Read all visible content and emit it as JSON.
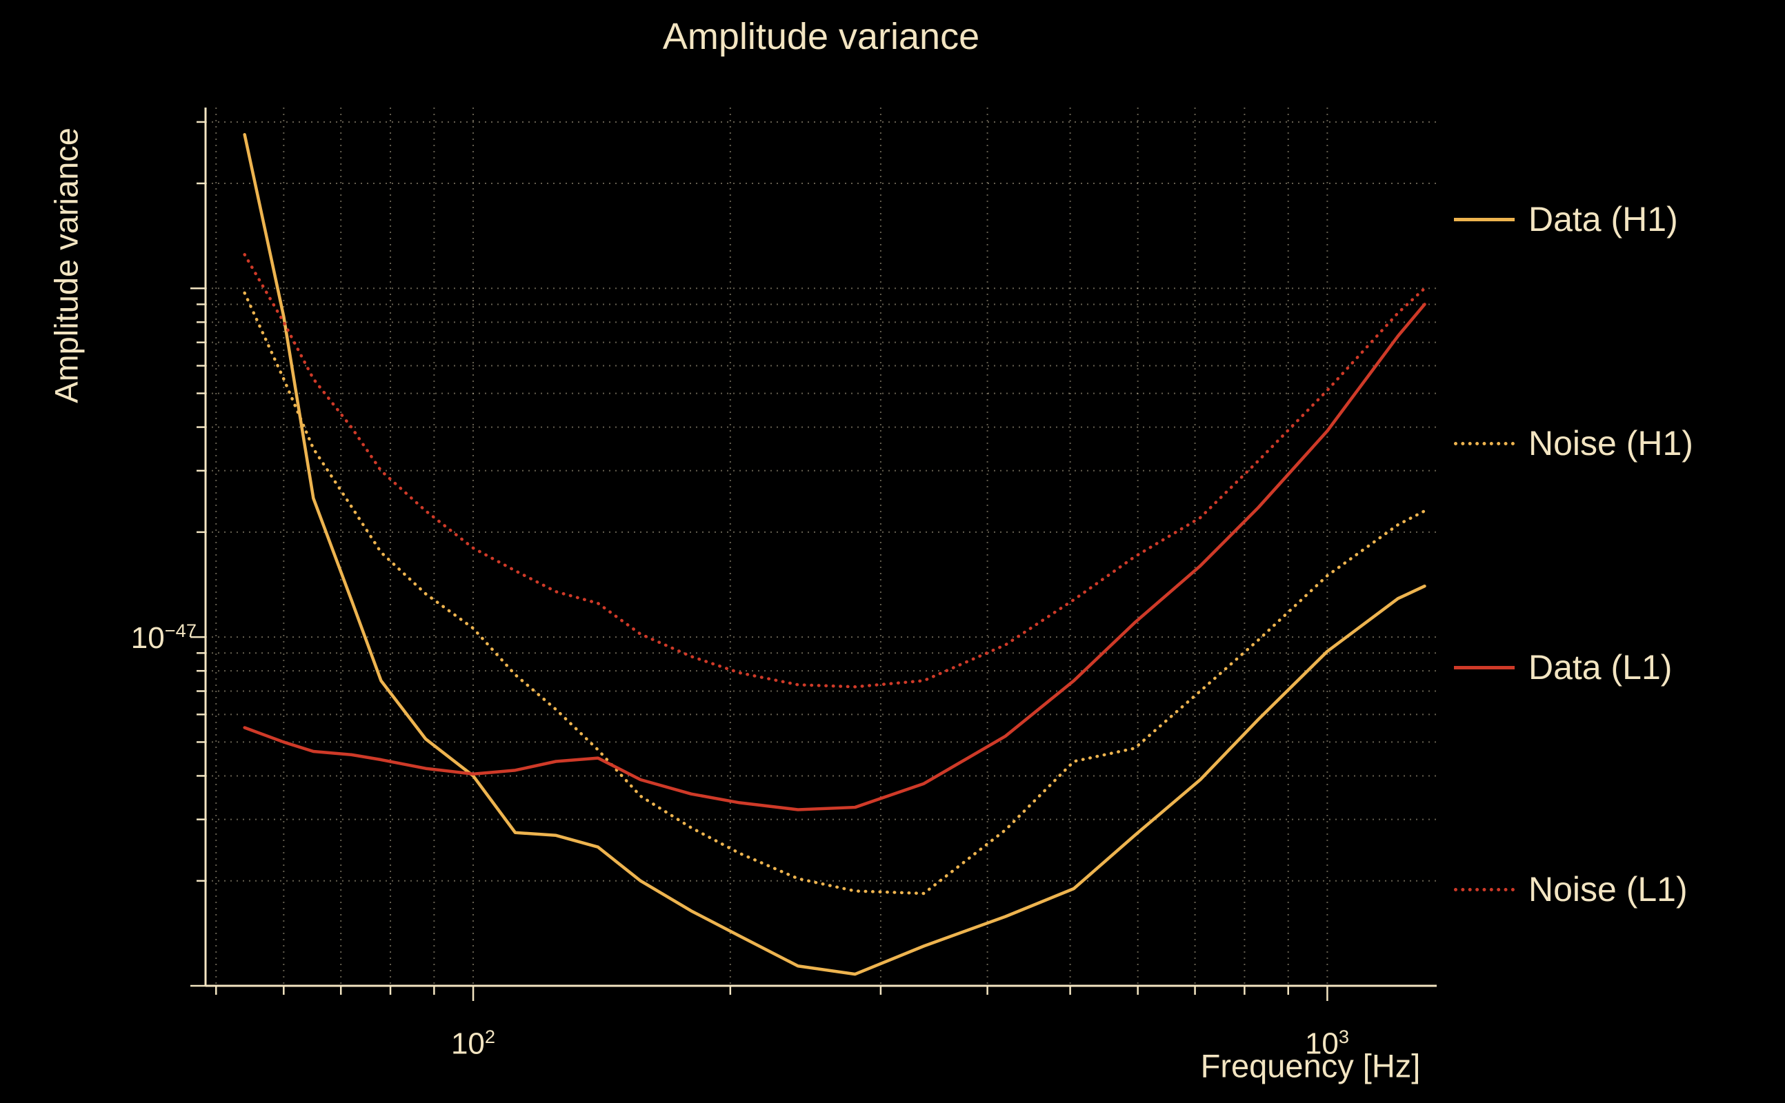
{
  "title": "Amplitude variance",
  "axes": {
    "x_label": "Frequency [Hz]",
    "y_label": "Amplitude variance",
    "x_ticks": [
      {
        "base": "10",
        "exp": "2"
      },
      {
        "base": "10",
        "exp": "3"
      }
    ],
    "y_ticks": [
      {
        "base": "10",
        "exp": "−47"
      }
    ]
  },
  "legend": {
    "items": [
      {
        "label": "Data (H1)"
      },
      {
        "label": "Noise (H1)"
      },
      {
        "label": "Data (L1)"
      },
      {
        "label": "Noise (L1)"
      }
    ]
  },
  "colors": {
    "background": "#000000",
    "text": "#f3e5c2",
    "h1_gold": "#eeb44f",
    "l1_red": "#cf3a28",
    "grid": "rgba(243,229,194,0.42)"
  },
  "chart_data": {
    "type": "line",
    "title": "Amplitude variance",
    "xlabel": "Frequency [Hz]",
    "ylabel": "Amplitude variance",
    "x_scale": "log",
    "y_scale": "log",
    "xlim": [
      48.6,
      1343
    ],
    "ylim": [
      1e-48,
      3.3e-46
    ],
    "grid": {
      "visible": true,
      "style": "dotted",
      "color": "rgba(243,229,194,0.42)"
    },
    "legend_position": "right-outside",
    "x": [
      54,
      60,
      65,
      72,
      78,
      88,
      100,
      112,
      125,
      140,
      157,
      180,
      205,
      240,
      280,
      337,
      420,
      505,
      595,
      710,
      830,
      1000,
      1210,
      1300
    ],
    "series": [
      {
        "name": "Data (H1)",
        "color": "#eeb44f",
        "line_style": "solid",
        "values": [
          2.76e-46,
          8.3e-47,
          2.5e-47,
          1.28e-47,
          7.5e-48,
          5.1e-48,
          4e-48,
          2.75e-48,
          2.7e-48,
          2.5e-48,
          2e-48,
          1.64e-48,
          1.39e-48,
          1.14e-48,
          1.08e-48,
          1.3e-48,
          1.58e-48,
          1.9e-48,
          2.7e-48,
          3.9e-48,
          5.8e-48,
          9.1e-48,
          1.29e-47,
          1.4e-47
        ]
      },
      {
        "name": "Noise (H1)",
        "color": "#eeb44f",
        "line_style": "dotted",
        "values": [
          9.7e-47,
          5.5e-47,
          3.47e-47,
          2.37e-47,
          1.75e-47,
          1.33e-47,
          1.06e-47,
          7.8e-48,
          6.2e-48,
          4.75e-48,
          3.5e-48,
          2.84e-48,
          2.4e-48,
          2.03e-48,
          1.87e-48,
          1.84e-48,
          2.8e-48,
          4.4e-48,
          4.8e-48,
          7e-48,
          9.8e-48,
          1.5e-47,
          2.1e-47,
          2.3e-47
        ]
      },
      {
        "name": "Data (L1)",
        "color": "#cf3a28",
        "line_style": "solid",
        "values": [
          5.5e-48,
          5e-48,
          4.7e-48,
          4.6e-48,
          4.45e-48,
          4.2e-48,
          4.05e-48,
          4.15e-48,
          4.4e-48,
          4.5e-48,
          3.9e-48,
          3.55e-48,
          3.35e-48,
          3.2e-48,
          3.25e-48,
          3.8e-48,
          5.2e-48,
          7.5e-48,
          1.1e-47,
          1.6e-47,
          2.35e-47,
          3.9e-47,
          7.3e-47,
          9e-47
        ]
      },
      {
        "name": "Noise (L1)",
        "color": "#cf3a28",
        "line_style": "dotted",
        "values": [
          1.25e-46,
          8e-47,
          5.5e-47,
          4e-47,
          3e-47,
          2.3e-47,
          1.8e-47,
          1.55e-47,
          1.35e-47,
          1.25e-47,
          1.02e-47,
          8.8e-48,
          7.9e-48,
          7.3e-48,
          7.2e-48,
          7.5e-48,
          9.5e-48,
          1.28e-47,
          1.7e-47,
          2.2e-47,
          3.2e-47,
          5.1e-47,
          8.5e-47,
          1e-46
        ]
      }
    ]
  }
}
